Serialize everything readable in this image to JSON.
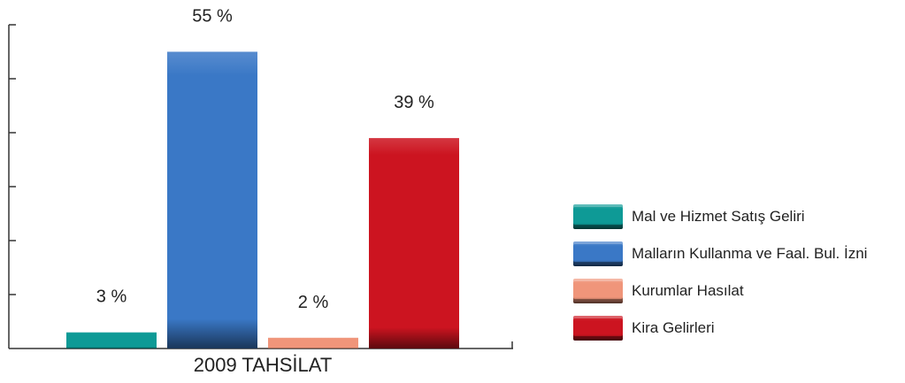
{
  "chart_data": {
    "type": "bar",
    "title": "",
    "xlabel": "2009 TAHSİLAT",
    "ylabel": "",
    "ylim": [
      0,
      60
    ],
    "grid": false,
    "legend_position": "right",
    "categories": [
      "Mal ve Hizmet Satış Geliri",
      "Malların Kullanma ve Faal. Bul. İzni",
      "Kurumlar Hasılat",
      "Kira Gelirleri"
    ],
    "values": [
      3,
      55,
      2,
      39
    ],
    "value_labels": [
      "3 %",
      "55 %",
      "2 %",
      "39 %"
    ],
    "colors": [
      "#0e9a96",
      "#3a78c6",
      "#f0957a",
      "#cc1420"
    ]
  }
}
